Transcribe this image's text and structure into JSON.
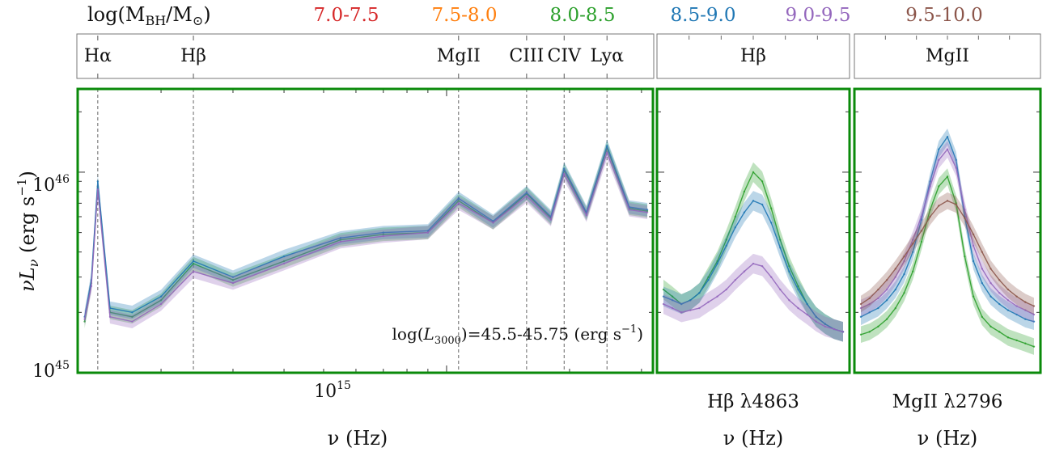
{
  "legend": {
    "title_html_main": "log(M",
    "title_sub": "BH",
    "title_mid": "/M",
    "title_sun": "⊙",
    "title_end": ")",
    "entries": [
      {
        "label": "7.0-7.5",
        "color": "#d62728"
      },
      {
        "label": "7.5-8.0",
        "color": "#ff7f0e"
      },
      {
        "label": "8.0-8.5",
        "color": "#2ca02c"
      },
      {
        "label": "8.5-9.0",
        "color": "#1f77b4"
      },
      {
        "label": "9.0-9.5",
        "color": "#9467bd"
      },
      {
        "label": "9.5-10.0",
        "color": "#8c564b"
      }
    ]
  },
  "line_strip": {
    "main": [
      {
        "label": "Hα",
        "x": 140000000000000.0
      },
      {
        "label": "Hβ",
        "x": 240000000000000.0
      },
      {
        "label": "MgII",
        "x": 1070000000000000.0
      },
      {
        "label": "CIII",
        "x": 1570000000000000.0
      },
      {
        "label": "CIV",
        "x": 1940000000000000.0
      },
      {
        "label": "Lyα",
        "x": 2470000000000000.0
      }
    ],
    "hbeta_panel": "Hβ",
    "mgii_panel": "MgII"
  },
  "axes": {
    "ylabel": "νLν (erg s⁻¹)",
    "ylabel_parts": {
      "nu": "ν",
      "L": "L",
      "sub": "ν",
      "unit": " (erg s",
      "exp": "−1",
      "close": ")"
    },
    "yticks": [
      {
        "base": "10",
        "exp": "46"
      },
      {
        "base": "10",
        "exp": "45"
      }
    ],
    "xtick_main": {
      "base": "10",
      "exp": "15"
    },
    "xlabel_main": "ν (Hz)",
    "xlabel_hb": "ν (Hz)",
    "xlabel_mg": "ν (Hz)",
    "hb_title": "Hβ λ4863",
    "mg_title": "MgII λ2796",
    "annotation": "log(L3000)=45.5-45.75 (erg s⁻¹)",
    "annotation_parts": {
      "pre": "log(",
      "L": "L",
      "sub": "3000",
      "post": ")=45.5-45.75 (erg s",
      "exp": "−1",
      "close": ")"
    }
  },
  "chart_data": [
    {
      "type": "line",
      "title": "",
      "xlabel": "ν (Hz)",
      "ylabel": "νLν (erg s⁻¹)",
      "xscale": "log",
      "yscale": "log",
      "xlim": [
        125000000000000.0,
        3200000000000000.0
      ],
      "ylim": [
        1e+45,
        2.6e+46
      ],
      "grid": false,
      "legend": "top",
      "x": [
        130000000000000.0,
        135000000000000.0,
        140000000000000.0,
        150000000000000.0,
        170000000000000.0,
        200000000000000.0,
        240000000000000.0,
        300000000000000.0,
        400000000000000.0,
        550000000000000.0,
        700000000000000.0,
        900000000000000.0,
        1070000000000000.0,
        1300000000000000.0,
        1570000000000000.0,
        1800000000000000.0,
        1940000000000000.0,
        2200000000000000.0,
        2470000000000000.0,
        2800000000000000.0,
        3100000000000000.0
      ],
      "series": [
        {
          "name": "8.0-8.5",
          "values": [
            1.8e+45,
            2.8e+45,
            8.5e+45,
            2e+45,
            1.9e+45,
            2.3e+45,
            3.5e+45,
            2.9e+45,
            3.6e+45,
            4.6e+45,
            4.9e+45,
            5e+45,
            7.2e+45,
            5.6e+45,
            7.8e+45,
            5.9e+45,
            1.02e+46,
            6.2e+45,
            1.32e+46,
            6.6e+45,
            6.4e+45
          ]
        },
        {
          "name": "8.5-9.0",
          "values": [
            1.9e+45,
            2.9e+45,
            9e+45,
            2.1e+45,
            2e+45,
            2.4e+45,
            3.6e+45,
            3e+45,
            3.8e+45,
            4.7e+45,
            5e+45,
            5.1e+45,
            7.4e+45,
            5.7e+45,
            7.9e+45,
            6e+45,
            1.04e+46,
            6.3e+45,
            1.35e+46,
            6.7e+45,
            6.5e+45
          ]
        },
        {
          "name": "9.0-9.5",
          "values": [
            1.85e+45,
            2.7e+45,
            8.2e+45,
            1.9e+45,
            1.8e+45,
            2.2e+45,
            3.2e+45,
            2.8e+45,
            3.5e+45,
            4.5e+45,
            4.8e+45,
            5e+45,
            7e+45,
            5.6e+45,
            7.6e+45,
            5.8e+45,
            9.8e+45,
            6.1e+45,
            1.25e+46,
            6.5e+45,
            6.3e+45
          ]
        }
      ]
    },
    {
      "type": "line",
      "title": "Hβ λ4863",
      "xlabel": "ν (Hz)",
      "ylim": [
        1e+45,
        2.6e+46
      ],
      "x": [
        0,
        1,
        2,
        3,
        4,
        5,
        6,
        7,
        8,
        9,
        10,
        11,
        12,
        13,
        14,
        15,
        16,
        17,
        18,
        19,
        20
      ],
      "series": [
        {
          "name": "8.0-8.5",
          "values": [
            2.6e+45,
            2.4e+45,
            2.2e+45,
            2.3e+45,
            2.5e+45,
            3e+45,
            3.6e+45,
            4.6e+45,
            6e+45,
            8e+45,
            1e+46,
            9e+45,
            6.6e+45,
            4.6e+45,
            3.4e+45,
            2.7e+45,
            2.2e+45,
            1.9e+45,
            1.75e+45,
            1.65e+45,
            1.6e+45
          ]
        },
        {
          "name": "8.5-9.0",
          "values": [
            2.4e+45,
            2.3e+45,
            2.2e+45,
            2.3e+45,
            2.5e+45,
            2.9e+45,
            3.5e+45,
            4.3e+45,
            5.3e+45,
            6.3e+45,
            7.2e+45,
            6.9e+45,
            5.6e+45,
            4.2e+45,
            3.2e+45,
            2.6e+45,
            2.2e+45,
            1.9e+45,
            1.75e+45,
            1.65e+45,
            1.6e+45
          ]
        },
        {
          "name": "9.0-9.5",
          "values": [
            2.2e+45,
            2.1e+45,
            2e+45,
            2.05e+45,
            2.1e+45,
            2.25e+45,
            2.4e+45,
            2.6e+45,
            2.9e+45,
            3.2e+45,
            3.5e+45,
            3.4e+45,
            3e+45,
            2.6e+45,
            2.3e+45,
            2.1e+45,
            1.95e+45,
            1.8e+45,
            1.7e+45,
            1.65e+45,
            1.6e+45
          ]
        }
      ]
    },
    {
      "type": "line",
      "title": "MgII λ2796",
      "xlabel": "ν (Hz)",
      "ylim": [
        1e+45,
        2.6e+46
      ],
      "x": [
        0,
        1,
        2,
        3,
        4,
        5,
        6,
        7,
        8,
        9,
        10,
        11,
        12,
        13,
        14,
        15,
        16,
        17,
        18,
        19,
        20
      ],
      "series": [
        {
          "name": "8.0-8.5",
          "values": [
            1.55e+45,
            1.6e+45,
            1.7e+45,
            1.85e+45,
            2.1e+45,
            2.5e+45,
            3.2e+45,
            4.5e+45,
            6.5e+45,
            8.5e+45,
            9.5e+45,
            7e+45,
            3.8e+45,
            2.4e+45,
            1.9e+45,
            1.7e+45,
            1.6e+45,
            1.5e+45,
            1.45e+45,
            1.4e+45,
            1.35e+45
          ]
        },
        {
          "name": "8.5-9.0",
          "values": [
            1.9e+45,
            2e+45,
            2.1e+45,
            2.3e+45,
            2.6e+45,
            3.1e+45,
            4e+45,
            5.8e+45,
            9e+45,
            1.3e+46,
            1.5e+46,
            1.15e+46,
            6e+45,
            3.6e+45,
            2.8e+45,
            2.4e+45,
            2.2e+45,
            2.05e+45,
            1.95e+45,
            1.85e+45,
            1.8e+45
          ]
        },
        {
          "name": "9.0-9.5",
          "values": [
            2.1e+45,
            2.2e+45,
            2.35e+45,
            2.6e+45,
            3e+45,
            3.6e+45,
            4.6e+45,
            6e+45,
            8.5e+45,
            1.15e+46,
            1.3e+46,
            1.05e+46,
            6.5e+45,
            4.3e+45,
            3.3e+45,
            2.8e+45,
            2.5e+45,
            2.3e+45,
            2.15e+45,
            2.05e+45,
            1.95e+45
          ]
        },
        {
          "name": "9.5-10.0",
          "values": [
            2.2e+45,
            2.35e+45,
            2.6e+45,
            2.9e+45,
            3.3e+45,
            3.8e+45,
            4.4e+45,
            5.1e+45,
            6e+45,
            6.8e+45,
            7.2e+45,
            6.9e+45,
            5.9e+45,
            4.9e+45,
            4e+45,
            3.3e+45,
            2.9e+45,
            2.6e+45,
            2.4e+45,
            2.25e+45,
            2.15e+45
          ]
        }
      ]
    }
  ]
}
